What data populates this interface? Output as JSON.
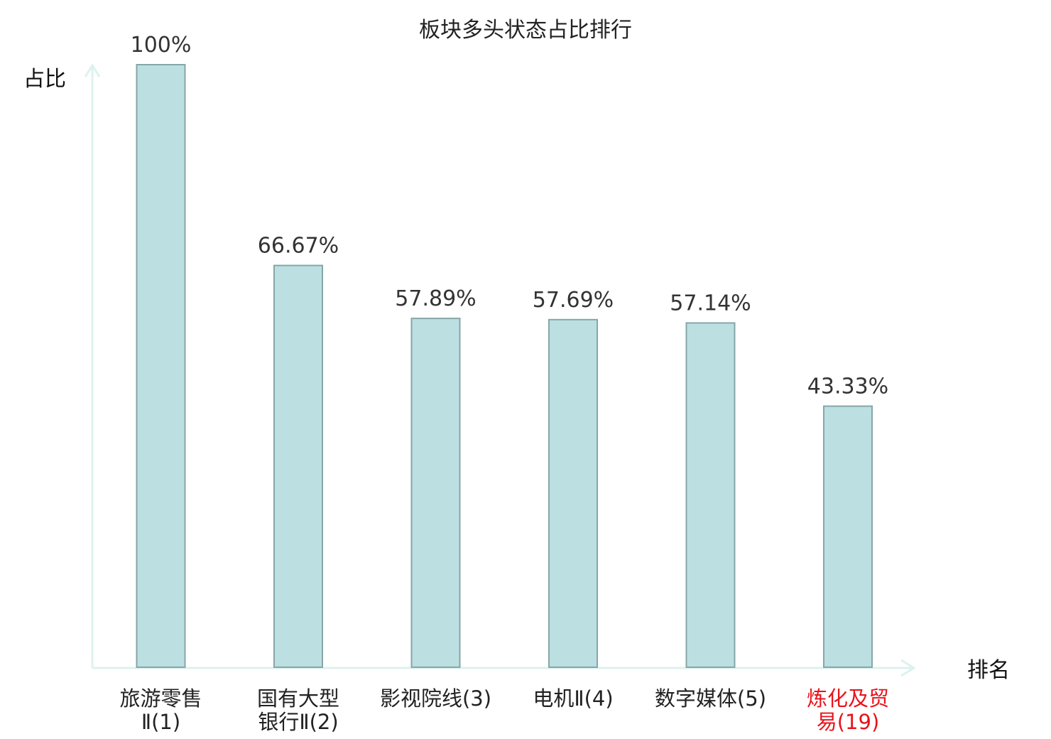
{
  "chart_data": {
    "type": "bar",
    "title": "板块多头状态占比排行",
    "xlabel": "排名",
    "ylabel": "占比",
    "ylim": [
      0,
      100
    ],
    "grid": false,
    "value_suffix": "%",
    "categories": [
      {
        "lines": [
          "旅游零售",
          "Ⅱ(1)"
        ],
        "highlight": false
      },
      {
        "lines": [
          "国有大型",
          "银行Ⅱ(2)"
        ],
        "highlight": false
      },
      {
        "lines": [
          "影视院线(3)"
        ],
        "highlight": false
      },
      {
        "lines": [
          "电机Ⅱ(4)"
        ],
        "highlight": false
      },
      {
        "lines": [
          "数字媒体(5)"
        ],
        "highlight": false
      },
      {
        "lines": [
          "炼化及贸",
          "易(19)"
        ],
        "highlight": true
      }
    ],
    "values": [
      100,
      66.67,
      57.89,
      57.69,
      57.14,
      43.33
    ],
    "value_labels": [
      "100%",
      "66.67%",
      "57.89%",
      "57.69%",
      "57.14%",
      "43.33%"
    ]
  },
  "colors": {
    "bar_fill": "#bce0e2",
    "bar_stroke": "#86a6a8",
    "axis": "#dcf2ef",
    "label_normal": "#222222",
    "label_highlight": "#e8141c"
  }
}
